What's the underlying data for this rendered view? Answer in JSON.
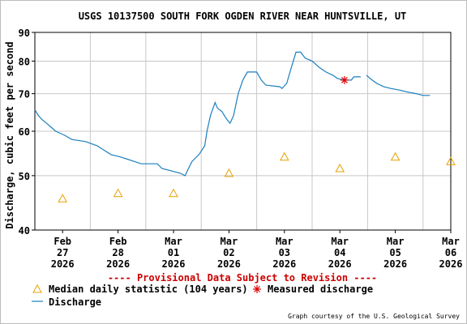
{
  "chart_data": {
    "type": "line",
    "title": "USGS 10137500 SOUTH FORK OGDEN RIVER NEAR HUNTSVILLE, UT",
    "ylabel": "Discharge, cubic feet per second",
    "xlabel": "",
    "y_scale": "log",
    "ylim": [
      40,
      90
    ],
    "y_ticks": [
      40,
      50,
      60,
      70,
      80,
      90
    ],
    "x_range": [
      "2026-02-27T00:00",
      "2026-03-06T12:00"
    ],
    "x_ticks": [
      {
        "date": "2026-02-27T12:00",
        "label": [
          "Feb",
          "27",
          "2026"
        ]
      },
      {
        "date": "2026-02-28T12:00",
        "label": [
          "Feb",
          "28",
          "2026"
        ]
      },
      {
        "date": "2026-03-01T12:00",
        "label": [
          "Mar",
          "01",
          "2026"
        ]
      },
      {
        "date": "2026-03-02T12:00",
        "label": [
          "Mar",
          "02",
          "2026"
        ]
      },
      {
        "date": "2026-03-03T12:00",
        "label": [
          "Mar",
          "03",
          "2026"
        ]
      },
      {
        "date": "2026-03-04T12:00",
        "label": [
          "Mar",
          "04",
          "2026"
        ]
      },
      {
        "date": "2026-03-05T12:00",
        "label": [
          "Mar",
          "05",
          "2026"
        ]
      },
      {
        "date": "2026-03-06T12:00",
        "label": [
          "Mar",
          "06",
          "2026"
        ]
      }
    ],
    "grid": true,
    "provisional_note": "---- Provisional Data Subject to Revision ----",
    "credit": "Graph courtesy of the U.S. Geological Survey",
    "colors": {
      "discharge": "#1a7fbf",
      "median": "#e8a000",
      "measured": "#dd0000",
      "provisional": "#cc0000",
      "grid": "#c8c8c8"
    },
    "series": [
      {
        "name": "Discharge",
        "points": [
          [
            "2026-02-27T00:00",
            65.5
          ],
          [
            "2026-02-27T01:30",
            64
          ],
          [
            "2026-02-27T03:00",
            63
          ],
          [
            "2026-02-27T05:00",
            62
          ],
          [
            "2026-02-27T07:00",
            61
          ],
          [
            "2026-02-27T09:00",
            60
          ],
          [
            "2026-02-27T11:00",
            59.5
          ],
          [
            "2026-02-27T13:00",
            59
          ],
          [
            "2026-02-27T16:00",
            58
          ],
          [
            "2026-02-27T22:00",
            57.5
          ],
          [
            "2026-02-28T03:00",
            56.5
          ],
          [
            "2026-02-28T06:00",
            55.5
          ],
          [
            "2026-02-28T09:00",
            54.5
          ],
          [
            "2026-02-28T13:00",
            54
          ],
          [
            "2026-02-28T16:00",
            53.5
          ],
          [
            "2026-02-28T19:00",
            53
          ],
          [
            "2026-02-28T22:00",
            52.5
          ],
          [
            "2026-03-01T00:00",
            52.5
          ],
          [
            "2026-03-01T05:00",
            52.5
          ],
          [
            "2026-03-01T07:00",
            51.5
          ],
          [
            "2026-03-01T11:00",
            51
          ],
          [
            "2026-03-01T15:00",
            50.5
          ],
          [
            "2026-03-01T17:00",
            50
          ],
          [
            "2026-03-01T18:00",
            51
          ],
          [
            "2026-03-01T20:00",
            53
          ],
          [
            "2026-03-01T23:00",
            54.5
          ],
          [
            "2026-03-02T01:30",
            56.5
          ],
          [
            "2026-03-02T02:30",
            60
          ],
          [
            "2026-03-02T04:00",
            64
          ],
          [
            "2026-03-02T06:00",
            67.5
          ],
          [
            "2026-03-02T07:00",
            66
          ],
          [
            "2026-03-02T09:00",
            65
          ],
          [
            "2026-03-02T11:00",
            63
          ],
          [
            "2026-03-02T12:30",
            62
          ],
          [
            "2026-03-02T14:00",
            64
          ],
          [
            "2026-03-02T16:00",
            70
          ],
          [
            "2026-03-02T18:00",
            74
          ],
          [
            "2026-03-02T20:00",
            76.5
          ],
          [
            "2026-03-03T00:00",
            76.5
          ],
          [
            "2026-03-03T02:00",
            74
          ],
          [
            "2026-03-03T04:00",
            72.5
          ],
          [
            "2026-03-03T10:00",
            72
          ],
          [
            "2026-03-03T11:00",
            71.5
          ],
          [
            "2026-03-03T13:00",
            73
          ],
          [
            "2026-03-03T15:00",
            78
          ],
          [
            "2026-03-03T17:00",
            83
          ],
          [
            "2026-03-03T19:00",
            83
          ],
          [
            "2026-03-03T21:00",
            81
          ],
          [
            "2026-03-04T00:00",
            80
          ],
          [
            "2026-03-04T03:00",
            78
          ],
          [
            "2026-03-04T06:00",
            76.5
          ],
          [
            "2026-03-04T09:00",
            75.5
          ],
          [
            "2026-03-04T11:00",
            74.5
          ],
          [
            "2026-03-04T14:00",
            74
          ],
          [
            "2026-03-04T17:00",
            74
          ],
          [
            "2026-03-04T18:00",
            75
          ],
          [
            "2026-03-04T21:00",
            75
          ],
          [
            "2026-03-04T22:00",
            null
          ],
          [
            "2026-03-04T23:30",
            75.5
          ],
          [
            "2026-03-05T02:00",
            74
          ],
          [
            "2026-03-05T04:00",
            73
          ],
          [
            "2026-03-05T07:00",
            72
          ],
          [
            "2026-03-05T10:00",
            71.5
          ],
          [
            "2026-03-05T14:00",
            71
          ],
          [
            "2026-03-05T17:00",
            70.5
          ],
          [
            "2026-03-05T21:00",
            70
          ],
          [
            "2026-03-06T00:00",
            69.5
          ],
          [
            "2026-03-06T03:00",
            69.5
          ]
        ]
      },
      {
        "name": "Median daily statistic (104 years)",
        "points": [
          [
            "2026-02-27T12:00",
            45.5
          ],
          [
            "2026-02-28T12:00",
            46.5
          ],
          [
            "2026-03-01T12:00",
            46.5
          ],
          [
            "2026-03-02T12:00",
            50.5
          ],
          [
            "2026-03-03T12:00",
            54
          ],
          [
            "2026-03-04T12:00",
            51.5
          ],
          [
            "2026-03-05T12:00",
            54
          ],
          [
            "2026-03-06T12:00",
            53
          ]
        ]
      },
      {
        "name": "Measured discharge",
        "points": [
          [
            "2026-03-04T14:00",
            74
          ]
        ]
      }
    ]
  }
}
